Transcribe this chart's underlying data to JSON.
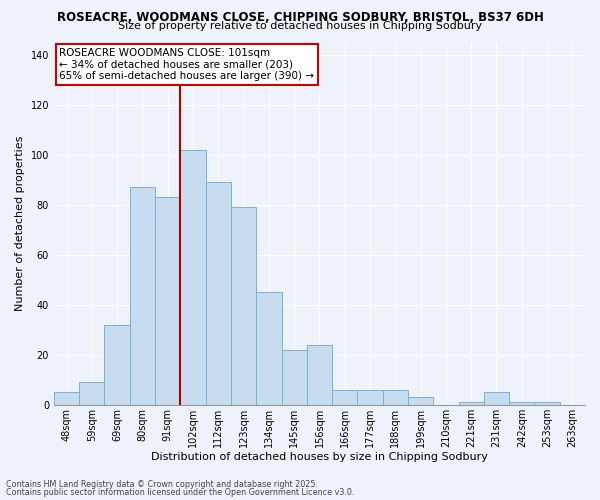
{
  "title_line1": "ROSEACRE, WOODMANS CLOSE, CHIPPING SODBURY, BRISTOL, BS37 6DH",
  "title_line2": "Size of property relative to detached houses in Chipping Sodbury",
  "xlabel": "Distribution of detached houses by size in Chipping Sodbury",
  "ylabel": "Number of detached properties",
  "bar_labels": [
    "48sqm",
    "59sqm",
    "69sqm",
    "80sqm",
    "91sqm",
    "102sqm",
    "112sqm",
    "123sqm",
    "134sqm",
    "145sqm",
    "156sqm",
    "166sqm",
    "177sqm",
    "188sqm",
    "199sqm",
    "210sqm",
    "221sqm",
    "231sqm",
    "242sqm",
    "253sqm",
    "263sqm"
  ],
  "bar_values": [
    5,
    9,
    32,
    87,
    83,
    102,
    89,
    79,
    45,
    22,
    24,
    6,
    6,
    6,
    3,
    0,
    1,
    5,
    1,
    1,
    0
  ],
  "bar_color": "#c8dcf0",
  "bar_edgecolor": "#7ab0d8",
  "vline_x_index": 5,
  "vline_color": "#aa0000",
  "annotation_title": "ROSEACRE WOODMANS CLOSE: 101sqm",
  "annotation_line2": "← 34% of detached houses are smaller (203)",
  "annotation_line3": "65% of semi-detached houses are larger (390) →",
  "box_facecolor": "white",
  "box_edgecolor": "#cc0000",
  "ylim": [
    0,
    145
  ],
  "yticks": [
    0,
    20,
    40,
    60,
    80,
    100,
    120,
    140
  ],
  "footnote1": "Contains HM Land Registry data © Crown copyright and database right 2025.",
  "footnote2": "Contains public sector information licensed under the Open Government Licence v3.0.",
  "background_color": "#eef3fb",
  "grid_color": "#ffffff",
  "title1_fontsize": 8.5,
  "title2_fontsize": 8.0,
  "xlabel_fontsize": 8.0,
  "ylabel_fontsize": 8.0,
  "tick_fontsize": 7.0,
  "annotation_fontsize": 7.5,
  "footnote_fontsize": 5.8
}
